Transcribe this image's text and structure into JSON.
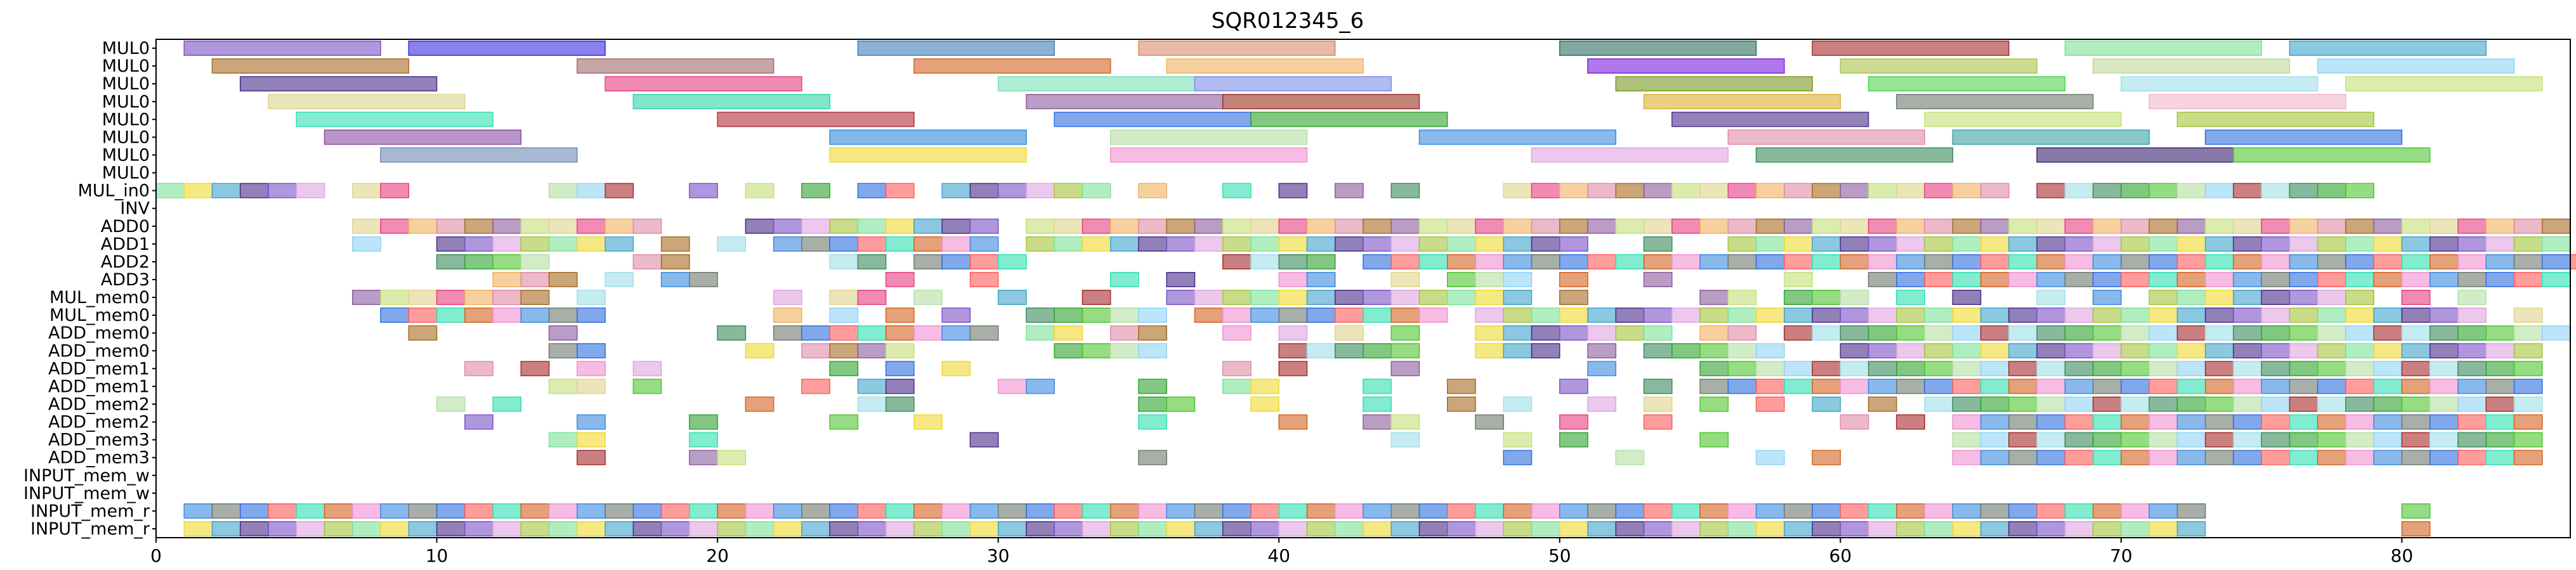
{
  "chart_data": {
    "type": "gantt",
    "title": "SQR012345_6",
    "xlabel": "",
    "ylabel": "",
    "xlim": [
      0,
      86
    ],
    "xticks": [
      0,
      10,
      20,
      30,
      40,
      50,
      60,
      70,
      80
    ],
    "rows": [
      "MUL0",
      "MUL0",
      "MUL0",
      "MUL0",
      "MUL0",
      "MUL0",
      "MUL0",
      "MUL0",
      "MUL_in0",
      "INV",
      "ADD0",
      "ADD1",
      "ADD2",
      "ADD3",
      "MUL_mem0",
      "MUL_mem0",
      "ADD_mem0",
      "ADD_mem0",
      "ADD_mem1",
      "ADD_mem1",
      "ADD_mem2",
      "ADD_mem2",
      "ADD_mem3",
      "ADD_mem3",
      "INPUT_mem_w",
      "INPUT_mem_w",
      "INPUT_mem_r",
      "INPUT_mem_r"
    ],
    "tasks": [
      {
        "row": 0,
        "start": 1,
        "end": 8,
        "color": "#7b52c7"
      },
      {
        "row": 0,
        "start": 9,
        "end": 16,
        "color": "#3a2be0"
      },
      {
        "row": 0,
        "start": 25,
        "end": 32,
        "color": "#3f7fb5"
      },
      {
        "row": 0,
        "start": 35,
        "end": 42,
        "color": "#d98a6a"
      },
      {
        "row": 0,
        "start": 50,
        "end": 57,
        "color": "#2e6e64"
      },
      {
        "row": 0,
        "start": 59,
        "end": 66,
        "color": "#a62b2b"
      },
      {
        "row": 0,
        "start": 68,
        "end": 75,
        "color": "#7be39a"
      },
      {
        "row": 0,
        "start": 76,
        "end": 83,
        "color": "#3fa4c9"
      },
      {
        "row": 1,
        "start": 2,
        "end": 9,
        "color": "#a66b22"
      },
      {
        "row": 1,
        "start": 15,
        "end": 22,
        "color": "#a46b6b"
      },
      {
        "row": 1,
        "start": 27,
        "end": 34,
        "color": "#d4621f"
      },
      {
        "row": 1,
        "start": 36,
        "end": 43,
        "color": "#f2b15f"
      },
      {
        "row": 1,
        "start": 51,
        "end": 58,
        "color": "#7a1fe0"
      },
      {
        "row": 1,
        "start": 60,
        "end": 67,
        "color": "#aac44a"
      },
      {
        "row": 1,
        "start": 69,
        "end": 76,
        "color": "#bfd79a"
      },
      {
        "row": 1,
        "start": 77,
        "end": 84,
        "color": "#8fd4f5"
      },
      {
        "row": 2,
        "start": 3,
        "end": 10,
        "color": "#4a2b8a"
      },
      {
        "row": 2,
        "start": 16,
        "end": 23,
        "color": "#e83d82"
      },
      {
        "row": 2,
        "start": 30,
        "end": 37,
        "color": "#7de0b8"
      },
      {
        "row": 2,
        "start": 37,
        "end": 44,
        "color": "#7b8fe6"
      },
      {
        "row": 2,
        "start": 52,
        "end": 59,
        "color": "#7a9a24"
      },
      {
        "row": 2,
        "start": 61,
        "end": 68,
        "color": "#4fd44f"
      },
      {
        "row": 2,
        "start": 70,
        "end": 77,
        "color": "#9fe0e8"
      },
      {
        "row": 2,
        "start": 78,
        "end": 85,
        "color": "#c4e07a"
      },
      {
        "row": 3,
        "start": 4,
        "end": 11,
        "color": "#e0d48a"
      },
      {
        "row": 3,
        "start": 17,
        "end": 24,
        "color": "#2fd4a8"
      },
      {
        "row": 3,
        "start": 31,
        "end": 38,
        "color": "#8a5c9e"
      },
      {
        "row": 3,
        "start": 38,
        "end": 45,
        "color": "#9e2f1f"
      },
      {
        "row": 3,
        "start": 53,
        "end": 60,
        "color": "#e0b02f"
      },
      {
        "row": 3,
        "start": 62,
        "end": 69,
        "color": "#6e7a6e"
      },
      {
        "row": 3,
        "start": 71,
        "end": 78,
        "color": "#f2b4cc"
      },
      {
        "row": 4,
        "start": 5,
        "end": 12,
        "color": "#2fe0b0"
      },
      {
        "row": 4,
        "start": 20,
        "end": 27,
        "color": "#b42f3a"
      },
      {
        "row": 4,
        "start": 32,
        "end": 39,
        "color": "#2f6ee0"
      },
      {
        "row": 4,
        "start": 39,
        "end": 46,
        "color": "#2fa42f"
      },
      {
        "row": 4,
        "start": 54,
        "end": 61,
        "color": "#4a2f8a"
      },
      {
        "row": 4,
        "start": 63,
        "end": 70,
        "color": "#c4e07a"
      },
      {
        "row": 4,
        "start": 72,
        "end": 79,
        "color": "#a4c43a"
      },
      {
        "row": 5,
        "start": 6,
        "end": 13,
        "color": "#8a4fa4"
      },
      {
        "row": 5,
        "start": 24,
        "end": 31,
        "color": "#2f8ae0"
      },
      {
        "row": 5,
        "start": 34,
        "end": 41,
        "color": "#b4e0a4"
      },
      {
        "row": 5,
        "start": 45,
        "end": 52,
        "color": "#3a8ae0"
      },
      {
        "row": 5,
        "start": 56,
        "end": 63,
        "color": "#e08aa4"
      },
      {
        "row": 5,
        "start": 64,
        "end": 71,
        "color": "#3aa4a4"
      },
      {
        "row": 5,
        "start": 73,
        "end": 80,
        "color": "#2f6ee0"
      },
      {
        "row": 6,
        "start": 8,
        "end": 15,
        "color": "#6e8ab4"
      },
      {
        "row": 6,
        "start": 24,
        "end": 31,
        "color": "#f0d82f"
      },
      {
        "row": 6,
        "start": 34,
        "end": 41,
        "color": "#f090d0"
      },
      {
        "row": 6,
        "start": 49,
        "end": 56,
        "color": "#e0a4e0"
      },
      {
        "row": 6,
        "start": 57,
        "end": 64,
        "color": "#3a8a5a"
      },
      {
        "row": 6,
        "start": 67,
        "end": 74,
        "color": "#3a1f6e"
      },
      {
        "row": 6,
        "start": 74,
        "end": 81,
        "color": "#4fc42f"
      }
    ],
    "slot_rows": [
      8,
      10,
      11,
      12,
      13,
      14,
      15,
      16,
      17,
      18,
      19,
      20,
      21,
      22,
      23,
      26,
      27
    ],
    "slot_blocks": [
      {
        "row": 8,
        "slots": [
          0,
          1,
          2,
          3,
          4,
          5,
          7,
          8,
          14,
          15,
          16,
          19,
          21,
          23,
          25,
          26,
          28,
          29,
          30,
          31,
          32,
          33,
          35,
          38,
          40,
          42,
          44,
          48,
          49,
          50,
          51,
          52,
          53,
          54,
          55,
          56,
          57,
          58,
          59,
          60,
          61,
          62,
          63,
          64,
          65,
          67,
          68,
          69,
          70,
          71,
          72,
          73,
          74,
          75,
          76,
          77,
          78
        ]
      },
      {
        "row": 10,
        "slots": [
          7,
          8,
          9,
          10,
          11,
          12,
          13,
          14,
          15,
          16,
          17,
          21,
          22,
          23,
          24,
          25,
          26,
          27,
          28,
          29,
          31,
          32,
          33,
          34,
          35,
          36,
          37,
          38,
          39,
          40,
          41,
          42,
          43,
          44,
          45,
          46,
          47,
          48,
          49,
          50,
          51,
          52,
          53,
          54,
          55,
          56,
          57,
          58,
          59,
          60,
          61,
          62,
          63,
          64,
          65,
          66,
          67,
          68,
          69,
          70,
          71,
          72,
          73,
          74,
          75,
          76,
          77,
          78,
          79,
          80,
          81,
          82,
          83,
          84,
          85
        ]
      },
      {
        "row": 11,
        "slots": [
          7,
          10,
          11,
          12,
          13,
          14,
          15,
          16,
          18,
          20,
          22,
          23,
          24,
          25,
          26,
          27,
          28,
          29,
          31,
          32,
          33,
          34,
          35,
          36,
          37,
          38,
          39,
          40,
          41,
          42,
          43,
          44,
          45,
          46,
          47,
          48,
          49,
          50,
          53,
          56,
          57,
          58,
          59,
          60,
          61,
          62,
          63,
          64,
          65,
          66,
          67,
          68,
          69,
          70,
          71,
          72,
          73,
          74,
          75,
          76,
          77,
          78,
          79,
          80,
          81,
          82,
          83,
          84,
          85
        ]
      },
      {
        "row": 12,
        "slots": [
          10,
          11,
          12,
          13,
          17,
          18,
          24,
          25,
          27,
          28,
          29,
          30,
          38,
          39,
          40,
          41,
          43,
          44,
          45,
          46,
          47,
          48,
          49,
          50,
          51,
          52,
          53,
          54,
          55,
          56,
          57,
          58,
          59,
          60,
          61,
          62,
          63,
          64,
          65,
          66,
          67,
          68,
          69,
          70,
          71,
          72,
          73,
          74,
          75,
          76,
          77,
          78,
          79,
          80,
          81,
          82,
          83,
          84,
          85,
          86
        ]
      },
      {
        "row": 13,
        "slots": [
          12,
          13,
          14,
          16,
          18,
          19,
          26,
          29,
          34,
          36,
          40,
          41,
          44,
          46,
          47,
          48,
          50,
          53,
          58,
          61,
          62,
          63,
          64,
          65,
          66,
          67,
          68,
          69,
          70,
          71,
          72,
          73,
          74,
          75,
          76,
          77,
          78,
          79,
          80,
          81,
          82,
          83,
          84,
          85
        ]
      },
      {
        "row": 14,
        "slots": [
          7,
          8,
          9,
          10,
          11,
          12,
          13,
          15,
          22,
          24,
          25,
          27,
          30,
          33,
          36,
          37,
          38,
          39,
          40,
          41,
          42,
          43,
          44,
          45,
          46,
          47,
          48,
          50,
          55,
          56,
          58,
          59,
          60,
          62,
          64,
          67,
          69,
          71,
          72,
          73,
          74,
          75,
          76,
          77,
          78,
          80,
          82
        ]
      },
      {
        "row": 15,
        "slots": [
          8,
          9,
          10,
          11,
          12,
          13,
          14,
          15,
          22,
          24,
          26,
          28,
          31,
          32,
          33,
          34,
          35,
          37,
          38,
          39,
          40,
          41,
          42,
          43,
          44,
          45,
          47,
          48,
          49,
          50,
          51,
          52,
          53,
          54,
          55,
          56,
          57,
          58,
          59,
          60,
          61,
          62,
          63,
          64,
          65,
          66,
          67,
          68,
          69,
          70,
          71,
          72,
          73,
          74,
          75,
          76,
          77,
          78,
          79,
          80,
          81,
          82,
          84
        ]
      },
      {
        "row": 16,
        "slots": [
          9,
          14,
          20,
          22,
          23,
          24,
          25,
          26,
          27,
          28,
          29,
          31,
          32,
          34,
          35,
          38,
          40,
          42,
          44,
          47,
          48,
          49,
          50,
          51,
          52,
          53,
          55,
          56,
          58,
          59,
          60,
          61,
          62,
          63,
          64,
          65,
          66,
          67,
          68,
          69,
          70,
          71,
          72,
          73,
          74,
          75,
          76,
          77,
          78,
          79,
          80,
          81,
          82,
          83,
          84,
          85
        ]
      },
      {
        "row": 17,
        "slots": [
          14,
          15,
          21,
          23,
          24,
          25,
          26,
          32,
          33,
          34,
          35,
          40,
          41,
          42,
          43,
          44,
          47,
          48,
          49,
          51,
          53,
          54,
          55,
          56,
          57,
          60,
          61,
          62,
          63,
          64,
          65,
          66,
          67,
          68,
          69,
          70,
          71,
          72,
          73,
          74,
          75,
          76,
          77,
          78,
          79,
          80,
          81,
          82,
          83,
          84
        ]
      },
      {
        "row": 18,
        "slots": [
          11,
          13,
          15,
          17,
          24,
          26,
          28,
          38,
          40,
          44,
          51,
          55,
          56,
          57,
          58,
          59,
          60,
          61,
          62,
          63,
          64,
          65,
          66,
          67,
          68,
          69,
          70,
          71,
          72,
          73,
          74,
          75,
          76,
          77,
          78,
          79,
          80,
          81,
          82,
          83,
          84
        ]
      },
      {
        "row": 19,
        "slots": [
          14,
          15,
          17,
          23,
          25,
          26,
          30,
          31,
          35,
          38,
          39,
          43,
          46,
          50,
          53,
          55,
          56,
          57,
          58,
          59,
          60,
          61,
          62,
          63,
          64,
          65,
          66,
          67,
          68,
          69,
          70,
          71,
          72,
          73,
          74,
          75,
          76,
          77,
          78,
          79,
          80,
          81,
          82,
          83,
          84
        ]
      },
      {
        "row": 20,
        "slots": [
          10,
          12,
          21,
          25,
          26,
          35,
          36,
          39,
          43,
          46,
          48,
          51,
          53,
          55,
          57,
          59,
          61,
          63,
          64,
          65,
          66,
          67,
          68,
          69,
          70,
          71,
          72,
          73,
          74,
          75,
          76,
          77,
          78,
          79,
          80,
          81,
          82,
          83,
          84
        ]
      },
      {
        "row": 21,
        "slots": [
          11,
          15,
          19,
          24,
          27,
          35,
          40,
          43,
          44,
          47,
          50,
          53,
          60,
          62,
          64,
          65,
          66,
          67,
          68,
          69,
          70,
          71,
          72,
          73,
          74,
          75,
          76,
          77,
          78,
          79,
          80,
          81,
          82,
          83,
          84
        ]
      },
      {
        "row": 22,
        "slots": [
          14,
          15,
          19,
          29,
          44,
          48,
          50,
          55,
          64,
          65,
          66,
          67,
          68,
          69,
          70,
          71,
          72,
          73,
          74,
          75,
          76,
          77,
          78,
          79,
          80,
          81,
          82,
          83,
          84
        ]
      },
      {
        "row": 23,
        "slots": [
          15,
          19,
          20,
          35,
          48,
          52,
          57,
          59,
          64,
          65,
          66,
          67,
          68,
          69,
          70,
          71,
          72,
          73,
          74,
          75,
          76,
          77,
          78,
          79,
          80,
          81,
          82,
          83,
          84
        ]
      },
      {
        "row": 26,
        "slots": [
          1,
          2,
          3,
          4,
          5,
          6,
          7,
          8,
          9,
          10,
          11,
          12,
          13,
          14,
          15,
          16,
          17,
          18,
          19,
          20,
          21,
          22,
          23,
          24,
          25,
          26,
          27,
          28,
          29,
          30,
          31,
          32,
          33,
          34,
          35,
          36,
          37,
          38,
          39,
          40,
          41,
          42,
          43,
          44,
          45,
          46,
          47,
          48,
          49,
          50,
          51,
          52,
          53,
          54,
          55,
          56,
          57,
          58,
          59,
          60,
          61,
          62,
          63,
          64,
          65,
          66,
          67,
          68,
          69,
          70,
          71,
          72,
          80
        ]
      },
      {
        "row": 27,
        "slots": [
          1,
          2,
          3,
          4,
          5,
          6,
          7,
          8,
          9,
          10,
          11,
          12,
          13,
          14,
          15,
          16,
          17,
          18,
          19,
          20,
          21,
          22,
          23,
          24,
          25,
          26,
          27,
          28,
          29,
          30,
          31,
          32,
          33,
          34,
          35,
          36,
          37,
          38,
          39,
          40,
          41,
          42,
          43,
          44,
          45,
          46,
          47,
          48,
          49,
          50,
          51,
          52,
          53,
          54,
          55,
          56,
          57,
          58,
          59,
          60,
          61,
          62,
          63,
          64,
          65,
          66,
          67,
          68,
          69,
          70,
          71,
          72,
          80
        ]
      }
    ],
    "grid": false,
    "legend": "none"
  }
}
